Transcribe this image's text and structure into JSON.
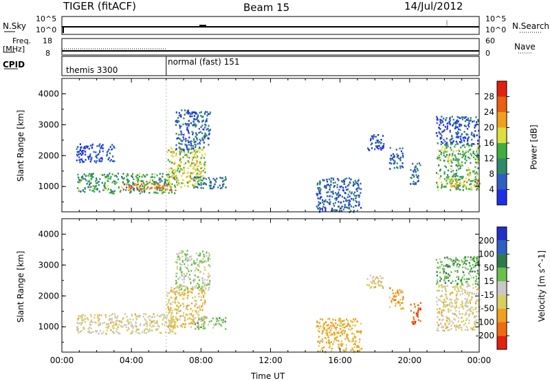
{
  "header": {
    "radar": "TIGER (fitACF)",
    "beam": "Beam 15",
    "date": "14/Jul/2012"
  },
  "aux": {
    "nsky_label": "N.Sky",
    "nsearch_label": "N.Search",
    "noise_ticks_left": [
      "10^5",
      "10^0"
    ],
    "noise_ticks_right": [
      "10^5",
      "10^0"
    ],
    "freq_label": "Freq.",
    "freq_unit": "[MHz]",
    "freq_ticks": [
      "18",
      "8"
    ],
    "nave_label": "Nave",
    "nave_ticks": [
      "60",
      "0"
    ],
    "cpid_label": "CPID",
    "cpid_segments": [
      {
        "label": "themis 3300",
        "start_hour": 0,
        "end_hour": 6
      },
      {
        "label": "normal (fast) 151",
        "start_hour": 6,
        "end_hour": 24
      }
    ]
  },
  "chart_data": [
    {
      "type": "heatmap",
      "name": "power",
      "ylabel": "Slant Range [km]",
      "yticks": [
        "1000",
        "2000",
        "3000",
        "4000"
      ],
      "ylim": [
        180,
        4500
      ],
      "xlim": [
        0,
        24
      ],
      "colorbar": {
        "label": "Power [dB]",
        "ticks": [
          "4",
          "8",
          "12",
          "16",
          "20",
          "24",
          "28"
        ],
        "range": [
          0,
          32
        ],
        "colors": [
          "#1f2fe6",
          "#2f5fc0",
          "#2f8a6a",
          "#3fae3f",
          "#dede3f",
          "#f0a020",
          "#e86010",
          "#e02010"
        ]
      },
      "echo_regions": [
        {
          "t0": 0.8,
          "t1": 6.5,
          "r0": 800,
          "r1": 1450,
          "power_db": 12
        },
        {
          "t0": 3.5,
          "t1": 6.5,
          "r0": 900,
          "r1": 1150,
          "power_db": 24
        },
        {
          "t0": 6.0,
          "t1": 8.2,
          "r0": 1000,
          "r1": 2300,
          "power_db": 18
        },
        {
          "t0": 6.5,
          "t1": 8.5,
          "r0": 2200,
          "r1": 3500,
          "power_db": 6
        },
        {
          "t0": 7.5,
          "t1": 9.4,
          "r0": 950,
          "r1": 1350,
          "power_db": 8
        },
        {
          "t0": 0.8,
          "t1": 3.0,
          "r0": 1800,
          "r1": 2400,
          "power_db": 4
        },
        {
          "t0": 14.6,
          "t1": 17.2,
          "r0": 200,
          "r1": 1300,
          "power_db": 6
        },
        {
          "t0": 17.5,
          "t1": 18.5,
          "r0": 2200,
          "r1": 2700,
          "power_db": 5
        },
        {
          "t0": 18.8,
          "t1": 19.6,
          "r0": 1600,
          "r1": 2300,
          "power_db": 6
        },
        {
          "t0": 20.0,
          "t1": 20.6,
          "r0": 1100,
          "r1": 1800,
          "power_db": 8
        },
        {
          "t0": 21.5,
          "t1": 24.0,
          "r0": 900,
          "r1": 2400,
          "power_db": 14
        },
        {
          "t0": 22.3,
          "t1": 24.0,
          "r0": 1000,
          "r1": 1250,
          "power_db": 22
        },
        {
          "t0": 21.5,
          "t1": 24.0,
          "r0": 2400,
          "r1": 3300,
          "power_db": 5
        }
      ]
    },
    {
      "type": "heatmap",
      "name": "velocity",
      "ylabel": "Slant Range [km]",
      "yticks": [
        "1000",
        "2000",
        "3000",
        "4000"
      ],
      "ylim": [
        180,
        4500
      ],
      "xlim": [
        0,
        24
      ],
      "xlabel": "Time UT",
      "xticks": [
        "00:00",
        "04:00",
        "08:00",
        "12:00",
        "16:00",
        "20:00",
        "00:00"
      ],
      "colorbar": {
        "label": "Velocity [m s^-1]",
        "ticks": [
          "-200",
          "-100",
          "-50",
          "-15",
          "15",
          "50",
          "100",
          "200"
        ],
        "colors": [
          "#e02010",
          "#f06a10",
          "#f0a020",
          "#d8cf60",
          "#c8c8c8",
          "#6ac04a",
          "#2f7a4a",
          "#2f5fc0",
          "#2030c8"
        ]
      },
      "echo_regions": [
        {
          "t0": 0.8,
          "t1": 6.5,
          "r0": 800,
          "r1": 1450,
          "velocity": -20
        },
        {
          "t0": 6.0,
          "t1": 8.2,
          "r0": 1000,
          "r1": 2300,
          "velocity": -40
        },
        {
          "t0": 6.5,
          "t1": 8.5,
          "r0": 2200,
          "r1": 3500,
          "velocity": 10
        },
        {
          "t0": 7.5,
          "t1": 9.4,
          "r0": 950,
          "r1": 1350,
          "velocity": 30
        },
        {
          "t0": 14.6,
          "t1": 17.2,
          "r0": 200,
          "r1": 1300,
          "velocity": -60
        },
        {
          "t0": 17.5,
          "t1": 18.5,
          "r0": 2200,
          "r1": 2700,
          "velocity": -30
        },
        {
          "t0": 18.8,
          "t1": 19.6,
          "r0": 1600,
          "r1": 2300,
          "velocity": -80
        },
        {
          "t0": 20.0,
          "t1": 20.6,
          "r0": 1100,
          "r1": 1800,
          "velocity": -180
        },
        {
          "t0": 21.5,
          "t1": 24.0,
          "r0": 900,
          "r1": 2400,
          "velocity": -20
        },
        {
          "t0": 21.5,
          "t1": 24.0,
          "r0": 2400,
          "r1": 3300,
          "velocity": 40
        }
      ]
    }
  ]
}
